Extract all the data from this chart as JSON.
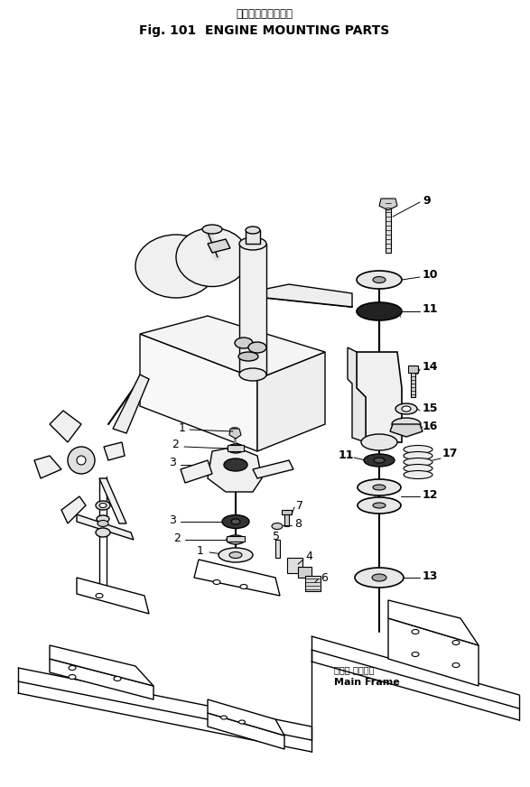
{
  "title_japanese": "エンジン　取付部品",
  "title_english": "Fig. 101  ENGINE MOUNTING PARTS",
  "background_color": "#ffffff",
  "line_color": "#000000"
}
